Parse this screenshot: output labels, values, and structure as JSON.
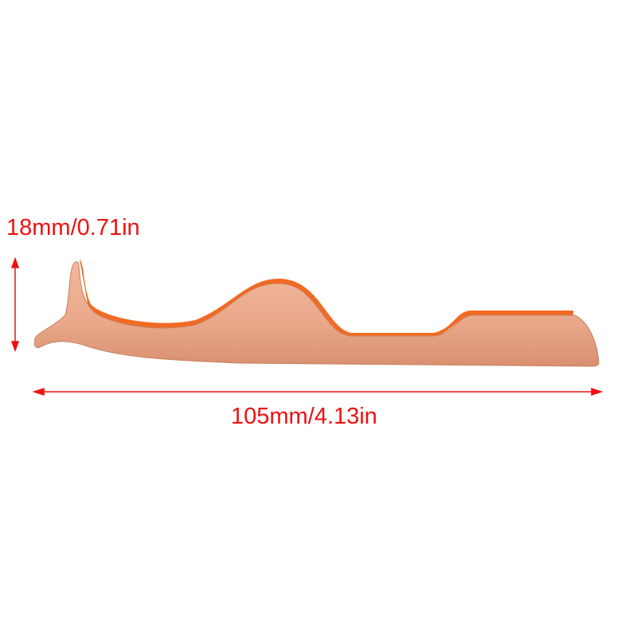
{
  "annotations": {
    "height_label": "18mm/0.71in",
    "width_label": "105mm/4.13in"
  },
  "colors": {
    "annotation": "#ee1111",
    "product": "#e8a88c",
    "product_edge": "#f06a2a"
  }
}
